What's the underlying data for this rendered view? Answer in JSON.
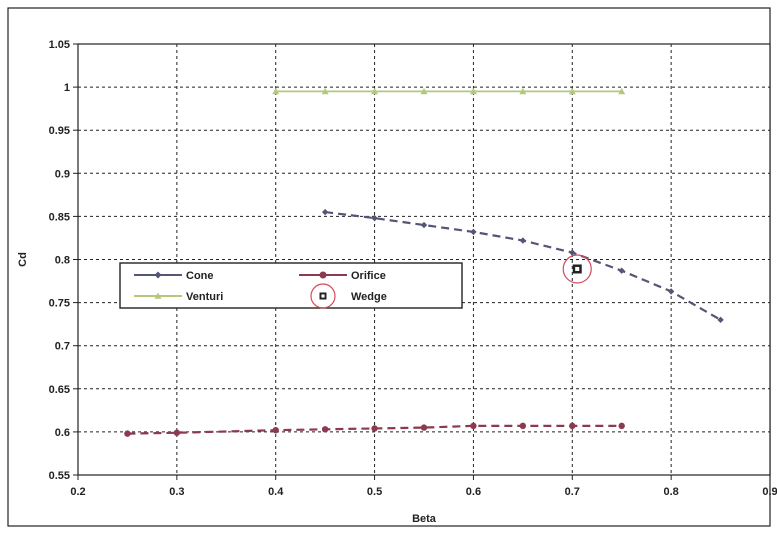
{
  "chart_data": {
    "type": "scatter",
    "title": "",
    "xlabel": "Beta",
    "ylabel": "Cd",
    "xlim": [
      0.2,
      0.9
    ],
    "ylim": [
      0.55,
      1.05
    ],
    "x_ticks": [
      0.2,
      0.3,
      0.4,
      0.5,
      0.6,
      0.7,
      0.8,
      0.9
    ],
    "x_tick_labels": [
      "0.2",
      "0.3",
      "0.4",
      "0.5",
      "0.6",
      "0.7",
      "0.8",
      "0.9"
    ],
    "y_ticks": [
      0.55,
      0.6,
      0.65,
      0.7,
      0.75,
      0.8,
      0.85,
      0.9,
      0.95,
      1.0,
      1.05
    ],
    "y_tick_labels": [
      "0.55",
      "0.6",
      "0.65",
      "0.7",
      "0.75",
      "0.8",
      "0.85",
      "0.9",
      "0.95",
      "1",
      "1.05"
    ],
    "grid": true,
    "legend_position": "center-left",
    "series": [
      {
        "name": "Cone",
        "color": "#555577",
        "marker": "diamond",
        "line": "dashed",
        "x": [
          0.45,
          0.5,
          0.55,
          0.6,
          0.65,
          0.7,
          0.75,
          0.8,
          0.85
        ],
        "y": [
          0.855,
          0.848,
          0.84,
          0.832,
          0.822,
          0.808,
          0.787,
          0.763,
          0.73
        ]
      },
      {
        "name": "Orifice",
        "color": "#8b3a50",
        "marker": "circle",
        "line": "dashed",
        "x": [
          0.25,
          0.3,
          0.4,
          0.45,
          0.5,
          0.55,
          0.6,
          0.65,
          0.7,
          0.75
        ],
        "y": [
          0.598,
          0.599,
          0.602,
          0.603,
          0.604,
          0.605,
          0.607,
          0.607,
          0.607,
          0.607
        ]
      },
      {
        "name": "Venturi",
        "color": "#b5c87a",
        "marker": "triangle",
        "line": "solid",
        "x": [
          0.4,
          0.45,
          0.5,
          0.55,
          0.6,
          0.65,
          0.7,
          0.75
        ],
        "y": [
          0.995,
          0.995,
          0.995,
          0.995,
          0.995,
          0.995,
          0.995,
          0.995
        ]
      },
      {
        "name": "Wedge",
        "color": "#222222",
        "marker": "square",
        "line": "none",
        "x": [
          0.705
        ],
        "y": [
          0.789
        ]
      }
    ],
    "annotations": [
      {
        "type": "circle",
        "color": "#d44a5a",
        "x": 0.705,
        "y": 0.789
      }
    ]
  }
}
